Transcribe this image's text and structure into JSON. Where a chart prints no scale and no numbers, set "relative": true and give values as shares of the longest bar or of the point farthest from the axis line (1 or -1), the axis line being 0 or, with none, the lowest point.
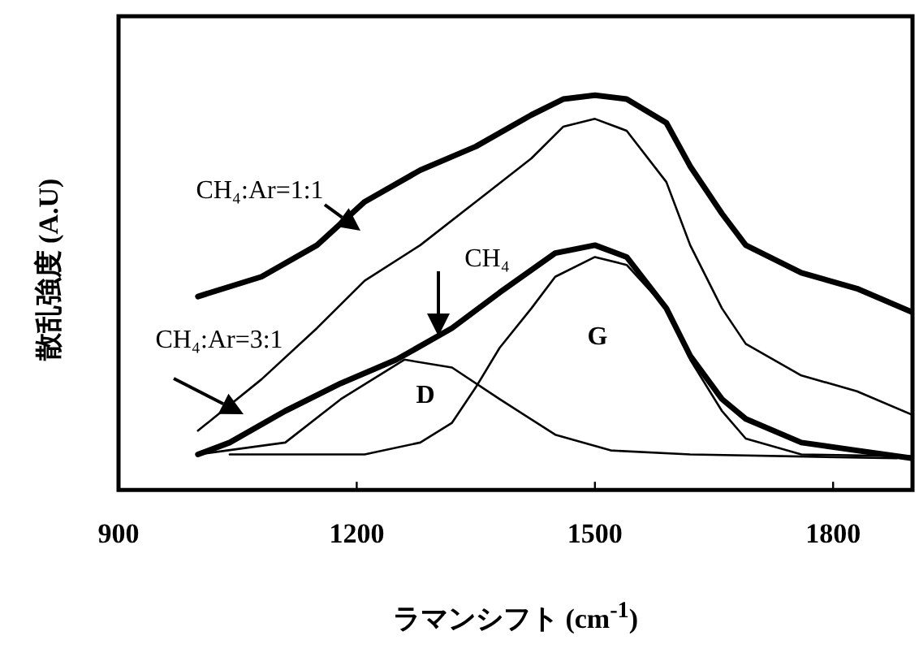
{
  "chart_data": {
    "type": "line",
    "relative": true,
    "xlabel": "ラマンシフト (cm$^{-1}$)",
    "ylabel": "散乱強度 (A.U)",
    "xlim": [
      900,
      1900
    ],
    "xticks": [
      900,
      1200,
      1500,
      1800
    ],
    "legend": false,
    "grid": false,
    "marker": "none",
    "line_style": "solid",
    "series": [
      {
        "name": "CH₄:Ar=1:1",
        "color": "#000000",
        "x": [
          1000,
          1080,
          1150,
          1210,
          1280,
          1350,
          1420,
          1460,
          1500,
          1540,
          1590,
          1620,
          1660,
          1690,
          1760,
          1830,
          1900
        ],
        "values": [
          0.49,
          0.54,
          0.62,
          0.73,
          0.81,
          0.87,
          0.95,
          0.99,
          1.0,
          0.99,
          0.93,
          0.82,
          0.7,
          0.62,
          0.55,
          0.51,
          0.45
        ]
      },
      {
        "name": "CH₄:Ar=3:1",
        "color": "#000000",
        "x": [
          1000,
          1080,
          1150,
          1210,
          1280,
          1350,
          1420,
          1460,
          1500,
          1540,
          1590,
          1620,
          1660,
          1690,
          1760,
          1830,
          1900
        ],
        "values": [
          0.15,
          0.28,
          0.41,
          0.53,
          0.62,
          0.73,
          0.84,
          0.92,
          0.94,
          0.91,
          0.78,
          0.62,
          0.46,
          0.37,
          0.29,
          0.25,
          0.19
        ]
      },
      {
        "name": "CH₄",
        "color": "#000000",
        "x": [
          1000,
          1040,
          1110,
          1180,
          1250,
          1320,
          1380,
          1450,
          1500,
          1540,
          1590,
          1620,
          1660,
          1690,
          1760,
          1830,
          1900
        ],
        "values": [
          0.09,
          0.12,
          0.2,
          0.27,
          0.33,
          0.41,
          0.5,
          0.6,
          0.62,
          0.59,
          0.46,
          0.34,
          0.23,
          0.18,
          0.12,
          0.1,
          0.08
        ]
      },
      {
        "name": "D",
        "color": "#000000",
        "x": [
          1000,
          1110,
          1180,
          1260,
          1320,
          1380,
          1450,
          1520,
          1620,
          1880
        ],
        "values": [
          0.09,
          0.12,
          0.23,
          0.33,
          0.31,
          0.23,
          0.14,
          0.1,
          0.09,
          0.08
        ]
      },
      {
        "name": "G",
        "color": "#000000",
        "x": [
          1040,
          1210,
          1280,
          1320,
          1350,
          1380,
          1420,
          1450,
          1500,
          1540,
          1590,
          1620,
          1660,
          1690,
          1760,
          1900
        ],
        "values": [
          0.09,
          0.09,
          0.12,
          0.17,
          0.26,
          0.36,
          0.46,
          0.54,
          0.59,
          0.57,
          0.46,
          0.33,
          0.2,
          0.13,
          0.09,
          0.085
        ]
      }
    ]
  }
}
